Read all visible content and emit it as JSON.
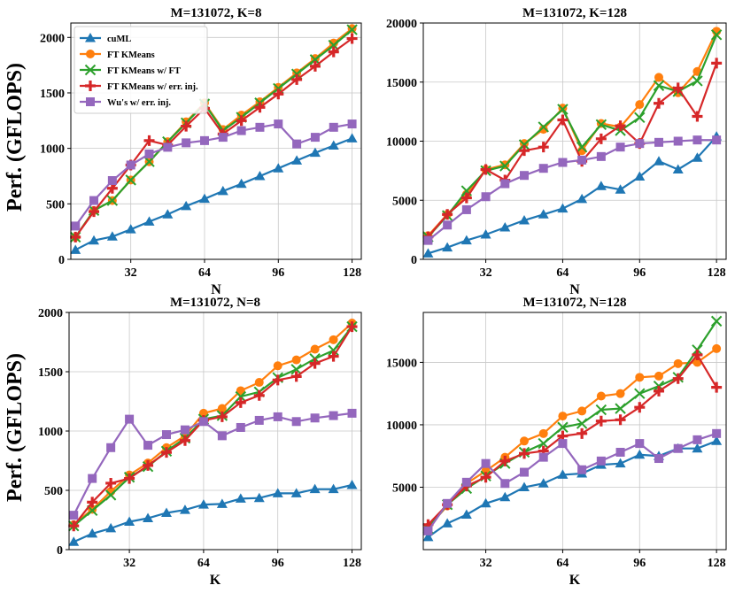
{
  "ylabel_left": "Perf. (GFLOPS)",
  "legend": [
    {
      "name": "cuML",
      "color": "#1f77b4",
      "marker": "triangle"
    },
    {
      "name": "FT KMeans",
      "color": "#ff7f0e",
      "marker": "circle"
    },
    {
      "name": "FT KMeans w/ FT",
      "color": "#2ca02c",
      "marker": "x"
    },
    {
      "name": "FT KMeans w/ err. inj.",
      "color": "#d62728",
      "marker": "plus"
    },
    {
      "name": "Wu's w/ err. inj.",
      "color": "#9467bd",
      "marker": "square"
    }
  ],
  "chart_data": [
    {
      "type": "line",
      "title": "M=131072, K=8",
      "xlabel": "N",
      "ylabel": "Perf. (GFLOPS)",
      "xlim": [
        6,
        132
      ],
      "ylim": [
        0,
        2130
      ],
      "xticks": [
        32,
        64,
        96,
        128
      ],
      "yticks": [
        0,
        500,
        1000,
        1500,
        2000
      ],
      "x": [
        8,
        16,
        24,
        32,
        40,
        48,
        56,
        64,
        72,
        80,
        88,
        96,
        104,
        112,
        120,
        128
      ],
      "series": [
        {
          "name": "cuML",
          "values": [
            85,
            170,
            205,
            270,
            340,
            405,
            480,
            545,
            615,
            680,
            750,
            820,
            890,
            960,
            1025,
            1090
          ]
        },
        {
          "name": "FT KMeans",
          "values": [
            200,
            440,
            530,
            715,
            880,
            1060,
            1240,
            1410,
            1170,
            1300,
            1420,
            1550,
            1680,
            1810,
            1950,
            2080
          ]
        },
        {
          "name": "FT KMeans w/ FT",
          "values": [
            200,
            440,
            530,
            715,
            880,
            1060,
            1230,
            1400,
            1160,
            1280,
            1410,
            1540,
            1670,
            1800,
            1930,
            2070
          ]
        },
        {
          "name": "FT KMeans w/ err. inj.",
          "values": [
            200,
            430,
            640,
            850,
            1070,
            1030,
            1200,
            1360,
            1130,
            1250,
            1370,
            1490,
            1620,
            1740,
            1870,
            1990
          ]
        },
        {
          "name": "Wu's w/ err. inj.",
          "values": [
            300,
            530,
            710,
            850,
            950,
            1010,
            1050,
            1070,
            1100,
            1160,
            1190,
            1220,
            1040,
            1100,
            1190,
            1220
          ]
        }
      ]
    },
    {
      "type": "line",
      "title": "M=131072, K=128",
      "xlabel": "N",
      "ylabel": "",
      "xlim": [
        6,
        132
      ],
      "ylim": [
        0,
        20000
      ],
      "xticks": [
        32,
        64,
        96,
        128
      ],
      "yticks": [
        0,
        5000,
        10000,
        15000,
        20000
      ],
      "x": [
        8,
        16,
        24,
        32,
        40,
        48,
        56,
        64,
        72,
        80,
        88,
        96,
        104,
        112,
        120,
        128
      ],
      "series": [
        {
          "name": "cuML",
          "values": [
            500,
            1000,
            1600,
            2100,
            2700,
            3300,
            3800,
            4300,
            5100,
            6200,
            5900,
            7000,
            8300,
            7600,
            8600,
            10400
          ]
        },
        {
          "name": "FT KMeans",
          "values": [
            2000,
            3800,
            5500,
            7600,
            8000,
            9800,
            11000,
            12800,
            9200,
            11500,
            11200,
            13100,
            15400,
            14100,
            15900,
            19300
          ]
        },
        {
          "name": "FT KMeans w/ FT",
          "values": [
            1900,
            3700,
            5800,
            7500,
            7900,
            9700,
            11200,
            12700,
            9500,
            11400,
            10900,
            12000,
            14700,
            14200,
            15100,
            19000
          ]
        },
        {
          "name": "FT KMeans w/ err. inj.",
          "values": [
            1900,
            3800,
            5200,
            7600,
            6700,
            9200,
            9500,
            11800,
            8300,
            10200,
            11300,
            9800,
            13200,
            14500,
            12100,
            16600
          ]
        },
        {
          "name": "Wu's w/ err. inj.",
          "values": [
            1600,
            2900,
            4200,
            5300,
            6400,
            7100,
            7700,
            8200,
            8400,
            8700,
            9500,
            9800,
            9900,
            10000,
            10100,
            10100
          ]
        }
      ]
    },
    {
      "type": "line",
      "title": "M=131072, N=8",
      "xlabel": "K",
      "ylabel": "Perf. (GFLOPS)",
      "xlim": [
        6,
        132
      ],
      "ylim": [
        0,
        2000
      ],
      "xticks": [
        32,
        64,
        96,
        128
      ],
      "yticks": [
        0,
        500,
        1000,
        1500,
        2000
      ],
      "x": [
        8,
        16,
        24,
        32,
        40,
        48,
        56,
        64,
        72,
        80,
        88,
        96,
        104,
        112,
        120,
        128
      ],
      "series": [
        {
          "name": "cuML",
          "values": [
            65,
            135,
            180,
            235,
            265,
            310,
            335,
            380,
            385,
            430,
            435,
            475,
            475,
            510,
            510,
            545
          ]
        },
        {
          "name": "FT KMeans",
          "values": [
            210,
            340,
            490,
            630,
            730,
            860,
            960,
            1150,
            1190,
            1340,
            1410,
            1550,
            1600,
            1690,
            1770,
            1910
          ]
        },
        {
          "name": "FT KMeans w/ FT",
          "values": [
            200,
            330,
            460,
            610,
            700,
            830,
            940,
            1100,
            1130,
            1290,
            1330,
            1450,
            1520,
            1610,
            1680,
            1880
          ]
        },
        {
          "name": "FT KMeans w/ err. inj.",
          "values": [
            200,
            400,
            560,
            600,
            710,
            820,
            920,
            1090,
            1120,
            1240,
            1300,
            1430,
            1460,
            1570,
            1630,
            1880
          ]
        },
        {
          "name": "Wu's w/ err. inj.",
          "values": [
            290,
            600,
            860,
            1100,
            880,
            970,
            1010,
            1080,
            960,
            1030,
            1090,
            1120,
            1080,
            1110,
            1130,
            1150
          ]
        }
      ]
    },
    {
      "type": "line",
      "title": "M=131072, N=128",
      "xlabel": "K",
      "ylabel": "",
      "xlim": [
        6,
        132
      ],
      "ylim": [
        0,
        19000
      ],
      "xticks": [
        32,
        64,
        96,
        128
      ],
      "yticks": [
        5000,
        10000,
        15000
      ],
      "x": [
        8,
        16,
        24,
        32,
        40,
        48,
        56,
        64,
        72,
        80,
        88,
        96,
        104,
        112,
        120,
        128
      ],
      "series": [
        {
          "name": "cuML",
          "values": [
            1000,
            2100,
            2800,
            3700,
            4200,
            5000,
            5300,
            6000,
            6100,
            6800,
            6900,
            7600,
            7500,
            8100,
            8100,
            8700
          ]
        },
        {
          "name": "FT KMeans",
          "values": [
            1800,
            3500,
            5300,
            6300,
            7400,
            8700,
            9300,
            10700,
            11100,
            12300,
            12500,
            13800,
            13900,
            14900,
            15000,
            16100
          ]
        },
        {
          "name": "FT KMeans w/ FT",
          "values": [
            1700,
            3600,
            4900,
            5900,
            6900,
            7800,
            8500,
            9800,
            10100,
            11200,
            11300,
            12500,
            13100,
            13800,
            16000,
            18300
          ]
        },
        {
          "name": "FT KMeans w/ err. inj.",
          "values": [
            2000,
            3600,
            5100,
            5800,
            7100,
            7700,
            7900,
            9100,
            9300,
            10300,
            10400,
            11400,
            12700,
            13700,
            15600,
            13000
          ]
        },
        {
          "name": "Wu's w/ err. inj.",
          "values": [
            1500,
            3700,
            5400,
            6900,
            5300,
            6200,
            7400,
            8500,
            6400,
            7100,
            7800,
            8500,
            7300,
            8100,
            8800,
            9300
          ]
        }
      ]
    }
  ]
}
